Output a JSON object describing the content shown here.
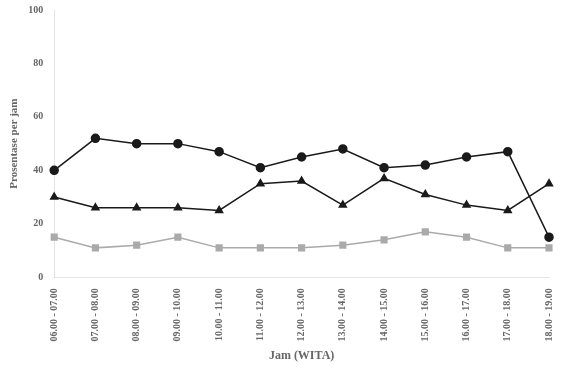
{
  "chart_data": {
    "type": "line",
    "xlabel": "Jam (WITA)",
    "ylabel": "Prosentase per jam",
    "categories": [
      "06.00 - 07.00",
      "07.00 - 08.00",
      "08.00 - 09.00",
      "09.00 - 10.00",
      "10.00 - 11.00",
      "11.00 - 12.00",
      "12.00 - 13.00",
      "13.00 - 14.00",
      "14.00 - 15.00",
      "15.00 - 16.00",
      "16.00 - 17.00",
      "17.00 - 18.00",
      "18.00 - 19.00"
    ],
    "series": [
      {
        "color": "#1a1a1a",
        "marker": "circle",
        "values": [
          40,
          52,
          50,
          50,
          47,
          41,
          45,
          48,
          41,
          42,
          45,
          47,
          15
        ]
      },
      {
        "color": "#1a1a1a",
        "marker": "triangle",
        "values": [
          30,
          26,
          26,
          26,
          25,
          35,
          36,
          27,
          37,
          31,
          27,
          25,
          35
        ]
      },
      {
        "color": "#aaaaaa",
        "marker": "square",
        "values": [
          15,
          11,
          12,
          15,
          11,
          11,
          11,
          12,
          14,
          17,
          15,
          11,
          11
        ]
      }
    ],
    "ylim": [
      0,
      100
    ],
    "yticks": [
      0,
      20,
      40,
      60,
      80,
      100
    ],
    "grid": false
  }
}
